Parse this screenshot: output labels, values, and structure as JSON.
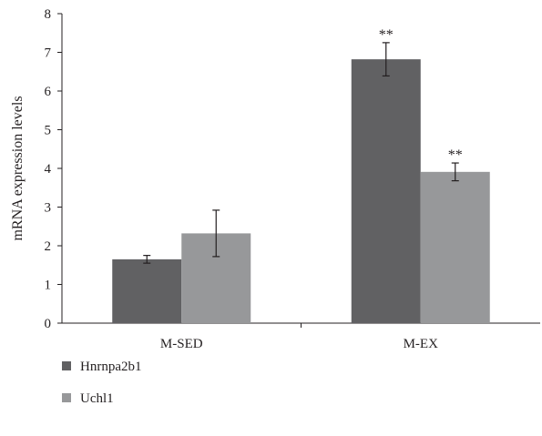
{
  "chart_data": {
    "type": "bar",
    "title": "",
    "xlabel": "",
    "ylabel": "mRNA expression levels",
    "ylim": [
      0,
      8
    ],
    "yticks": [
      0,
      1,
      2,
      3,
      4,
      5,
      6,
      7,
      8
    ],
    "categories": [
      "M-SED",
      "M-EX"
    ],
    "series": [
      {
        "name": "Hnrnpa2b1",
        "color": "#616163",
        "values": [
          1.65,
          6.82
        ],
        "error": [
          0.1,
          0.43
        ],
        "annotations": [
          "",
          "**"
        ]
      },
      {
        "name": "Uchl1",
        "color": "#97989a",
        "values": [
          2.32,
          3.91
        ],
        "error": [
          0.6,
          0.23
        ],
        "annotations": [
          "",
          "**"
        ]
      }
    ],
    "grid": false,
    "legend": {
      "placement": "bottom-left",
      "items": [
        "Hnrnpa2b1",
        "Uchl1"
      ]
    }
  }
}
